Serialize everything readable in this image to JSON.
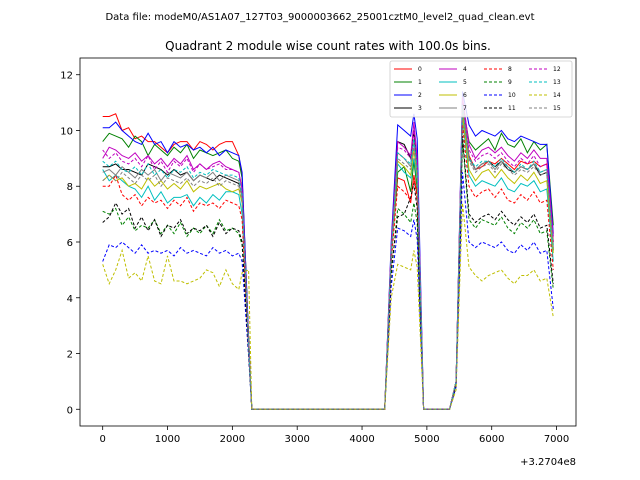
{
  "figure": {
    "suptitle": "Data file: modeM0/AS1A07_127T03_9000003662_25001cztM0_level2_quad_clean.evt"
  },
  "chart_data": {
    "type": "line",
    "title": "Quadrant 2 module wise count rates with 100.0s bins.",
    "xlabel": "",
    "ylabel": "",
    "x_offset_label": "+3.2704e8",
    "xlim": [
      -350,
      7300
    ],
    "ylim": [
      -0.6,
      12.6
    ],
    "xticks": [
      0,
      1000,
      2000,
      3000,
      4000,
      5000,
      6000,
      7000
    ],
    "xtick_labels": [
      "0",
      "1000",
      "2000",
      "3000",
      "4000",
      "5000",
      "6000",
      "7000"
    ],
    "yticks": [
      0,
      2,
      4,
      6,
      8,
      10,
      12
    ],
    "ytick_labels": [
      "0",
      "2",
      "4",
      "6",
      "8",
      "10",
      "12"
    ],
    "grid": false,
    "legend": {
      "placement": "top-right",
      "columns": 4
    },
    "x": [
      0,
      100,
      200,
      300,
      400,
      500,
      600,
      700,
      800,
      900,
      1000,
      1100,
      1200,
      1300,
      1400,
      1500,
      1600,
      1700,
      1800,
      1900,
      2000,
      2100,
      2150,
      2250,
      2300,
      4350,
      4450,
      4550,
      4650,
      4750,
      4800,
      4850,
      4950,
      5350,
      5450,
      5550,
      5650,
      5750,
      5850,
      5950,
      6050,
      6150,
      6250,
      6350,
      6450,
      6550,
      6650,
      6750,
      6850,
      6950
    ],
    "series": [
      {
        "name": "0",
        "color": "#ff0000",
        "style": "solid",
        "values": [
          10.5,
          10.5,
          10.6,
          10.0,
          10.1,
          9.7,
          9.8,
          9.6,
          9.6,
          9.4,
          9.2,
          9.5,
          9.6,
          9.6,
          9.3,
          9.6,
          9.5,
          9.3,
          9.5,
          9.6,
          9.6,
          9.1,
          8.3,
          2.6,
          0,
          0,
          5.6,
          8.3,
          8.2,
          7.4,
          8.4,
          7.7,
          0,
          0,
          1.0,
          11.0,
          9.1,
          8.6,
          8.7,
          8.9,
          8.8,
          9.0,
          8.8,
          8.6,
          8.9,
          8.8,
          8.9,
          8.7,
          8.8,
          6.0
        ]
      },
      {
        "name": "1",
        "color": "#008000",
        "style": "solid",
        "values": [
          9.6,
          9.9,
          9.8,
          9.7,
          9.4,
          9.8,
          9.6,
          9.1,
          9.5,
          9.3,
          9.1,
          9.4,
          9.2,
          9.5,
          9.0,
          9.3,
          9.2,
          9.1,
          9.2,
          9.3,
          9.0,
          8.9,
          8.3,
          2.6,
          0,
          0,
          5.5,
          8.5,
          8.7,
          7.8,
          8.9,
          7.9,
          0,
          0,
          1.0,
          11.0,
          9.6,
          9.3,
          9.5,
          9.7,
          9.3,
          9.9,
          9.5,
          9.4,
          9.7,
          9.2,
          9.6,
          9.3,
          9.5,
          6.6
        ]
      },
      {
        "name": "2",
        "color": "#0000ff",
        "style": "solid",
        "values": [
          10.1,
          10.1,
          10.3,
          10.0,
          9.8,
          9.6,
          9.5,
          9.9,
          9.5,
          9.6,
          9.2,
          9.6,
          9.4,
          9.5,
          9.3,
          9.4,
          9.2,
          9.4,
          9.1,
          9.3,
          9.2,
          9.1,
          8.5,
          2.5,
          0,
          0,
          6.0,
          10.2,
          10.0,
          9.8,
          10.6,
          9.7,
          0,
          0,
          1.0,
          11.4,
          10.2,
          9.8,
          10.0,
          9.9,
          9.8,
          10.0,
          9.7,
          9.6,
          9.8,
          9.7,
          9.6,
          9.5,
          9.5,
          6.3
        ]
      },
      {
        "name": "3",
        "color": "#000000",
        "style": "solid",
        "values": [
          8.7,
          8.7,
          8.8,
          8.6,
          8.6,
          8.5,
          8.4,
          8.8,
          8.7,
          8.6,
          8.4,
          8.6,
          8.4,
          8.5,
          8.2,
          8.4,
          8.3,
          8.2,
          8.4,
          8.3,
          8.2,
          8.1,
          7.7,
          2.2,
          0,
          0,
          5.7,
          9.6,
          9.5,
          9.0,
          10.0,
          8.5,
          0,
          0,
          1.0,
          10.8,
          9.0,
          8.6,
          8.8,
          8.9,
          8.7,
          8.9,
          8.6,
          8.5,
          8.7,
          8.6,
          8.8,
          8.4,
          8.5,
          5.7
        ]
      },
      {
        "name": "4",
        "color": "#bf00bf",
        "style": "solid",
        "values": [
          9.0,
          9.4,
          9.3,
          9.1,
          9.0,
          9.2,
          8.9,
          9.1,
          8.8,
          9.0,
          8.7,
          9.0,
          8.8,
          9.1,
          8.6,
          8.8,
          8.6,
          8.8,
          8.9,
          8.7,
          8.6,
          8.5,
          7.9,
          2.4,
          0,
          0,
          5.8,
          9.6,
          9.4,
          9.1,
          10.3,
          9.0,
          0,
          0,
          1.0,
          11.2,
          9.5,
          9.0,
          9.3,
          9.4,
          9.2,
          9.4,
          9.1,
          8.9,
          9.2,
          9.0,
          9.3,
          9.0,
          9.0,
          6.2
        ]
      },
      {
        "name": "5",
        "color": "#00bfbf",
        "style": "solid",
        "values": [
          8.6,
          8.2,
          8.4,
          8.2,
          8.0,
          7.9,
          7.6,
          8.0,
          7.5,
          7.8,
          7.4,
          7.6,
          7.6,
          7.7,
          7.3,
          7.6,
          7.4,
          7.7,
          7.5,
          7.8,
          7.8,
          7.7,
          7.0,
          2.2,
          0,
          0,
          5.3,
          8.8,
          8.5,
          8.3,
          9.0,
          8.2,
          0,
          0,
          1.0,
          10.4,
          8.4,
          8.0,
          8.2,
          8.1,
          8.0,
          8.3,
          7.9,
          7.8,
          8.1,
          8.0,
          8.2,
          7.8,
          7.9,
          5.3
        ]
      },
      {
        "name": "6",
        "color": "#bfbf00",
        "style": "solid",
        "values": [
          8.2,
          8.4,
          8.2,
          8.3,
          8.0,
          8.1,
          7.9,
          8.3,
          8.0,
          8.2,
          7.9,
          8.1,
          7.9,
          8.2,
          7.8,
          8.0,
          7.9,
          8.0,
          8.1,
          7.9,
          7.8,
          7.9,
          7.4,
          2.3,
          0,
          0,
          5.4,
          8.9,
          8.7,
          8.4,
          9.3,
          8.3,
          0,
          0,
          1.0,
          10.6,
          8.6,
          8.2,
          8.5,
          8.6,
          8.3,
          8.6,
          8.3,
          8.1,
          8.4,
          8.2,
          8.5,
          8.1,
          8.2,
          5.6
        ]
      },
      {
        "name": "7",
        "color": "#808080",
        "style": "solid",
        "values": [
          8.5,
          8.6,
          8.4,
          8.7,
          8.5,
          8.3,
          8.6,
          8.4,
          8.6,
          8.2,
          8.5,
          8.4,
          8.3,
          8.5,
          8.2,
          8.4,
          8.3,
          8.5,
          8.2,
          8.4,
          8.3,
          8.2,
          7.6,
          2.3,
          0,
          0,
          5.6,
          9.2,
          9.0,
          8.7,
          9.6,
          8.6,
          0,
          0,
          1.0,
          10.9,
          9.0,
          8.6,
          8.8,
          8.9,
          8.6,
          8.9,
          8.7,
          8.5,
          8.7,
          8.6,
          8.8,
          8.5,
          8.6,
          5.9
        ]
      },
      {
        "name": "8",
        "color": "#ff0000",
        "style": "dashed",
        "values": [
          8.0,
          8.0,
          8.4,
          7.7,
          7.5,
          7.7,
          7.3,
          7.6,
          7.4,
          7.5,
          7.2,
          7.5,
          7.3,
          7.6,
          7.1,
          7.4,
          7.3,
          7.4,
          7.2,
          7.5,
          7.4,
          7.3,
          6.8,
          2.2,
          0,
          0,
          5.3,
          8.0,
          7.8,
          7.5,
          8.3,
          7.5,
          0,
          0,
          1.0,
          10.2,
          8.0,
          7.6,
          7.8,
          7.9,
          7.6,
          7.9,
          7.5,
          7.4,
          7.7,
          7.5,
          7.8,
          7.4,
          7.5,
          5.0
        ]
      },
      {
        "name": "9",
        "color": "#008000",
        "style": "dashed",
        "values": [
          7.1,
          7.0,
          7.2,
          6.6,
          6.9,
          6.4,
          6.6,
          6.5,
          6.8,
          6.3,
          6.6,
          6.3,
          6.7,
          6.2,
          6.5,
          6.3,
          6.6,
          6.3,
          6.8,
          6.4,
          6.5,
          6.3,
          5.9,
          2.0,
          0,
          0,
          4.8,
          7.2,
          7.0,
          6.7,
          7.4,
          6.7,
          0,
          0,
          0.9,
          9.7,
          6.8,
          6.5,
          6.8,
          6.7,
          6.6,
          6.9,
          6.5,
          6.3,
          6.7,
          6.5,
          6.8,
          6.3,
          6.4,
          4.3
        ]
      },
      {
        "name": "10",
        "color": "#0000ff",
        "style": "dashed",
        "values": [
          5.3,
          5.9,
          5.8,
          6.0,
          5.8,
          5.6,
          5.9,
          5.6,
          5.7,
          5.6,
          5.7,
          5.5,
          5.8,
          5.6,
          5.7,
          5.6,
          5.5,
          5.8,
          5.6,
          5.7,
          5.5,
          5.6,
          5.3,
          1.9,
          0,
          0,
          4.4,
          6.5,
          6.4,
          6.2,
          6.8,
          6.1,
          0,
          0,
          0.8,
          8.5,
          6.0,
          5.8,
          6.0,
          5.9,
          5.8,
          6.0,
          5.7,
          5.6,
          5.9,
          5.7,
          6.0,
          5.6,
          5.7,
          3.6
        ]
      },
      {
        "name": "11",
        "color": "#000000",
        "style": "dashed",
        "values": [
          6.7,
          6.9,
          7.4,
          7.0,
          7.2,
          6.5,
          6.9,
          6.4,
          6.8,
          6.2,
          6.6,
          6.5,
          6.8,
          6.3,
          6.5,
          6.4,
          6.6,
          6.2,
          6.7,
          6.3,
          6.5,
          6.4,
          6.0,
          2.1,
          0,
          0,
          5.0,
          6.9,
          7.0,
          7.6,
          8.1,
          7.2,
          0,
          0,
          0.9,
          9.8,
          7.0,
          6.7,
          6.9,
          7.0,
          6.8,
          7.1,
          6.8,
          6.6,
          6.9,
          6.7,
          7.0,
          6.5,
          6.6,
          4.5
        ]
      },
      {
        "name": "12",
        "color": "#bf00bf",
        "style": "dashed",
        "values": [
          9.3,
          9.0,
          9.2,
          8.9,
          8.8,
          9.0,
          8.7,
          9.1,
          8.6,
          8.9,
          8.5,
          8.9,
          8.7,
          9.0,
          8.5,
          8.8,
          8.6,
          8.7,
          8.8,
          8.6,
          8.6,
          8.5,
          7.9,
          2.4,
          0,
          0,
          5.8,
          9.4,
          9.3,
          9.0,
          10.0,
          8.9,
          0,
          0,
          1.0,
          11.1,
          9.3,
          8.9,
          9.1,
          9.2,
          9.0,
          9.2,
          8.9,
          8.7,
          9.0,
          8.8,
          9.1,
          8.7,
          8.8,
          6.0
        ]
      },
      {
        "name": "13",
        "color": "#00bfbf",
        "style": "dashed",
        "values": [
          8.9,
          8.7,
          8.9,
          8.6,
          8.5,
          8.7,
          8.4,
          8.8,
          8.4,
          8.6,
          8.3,
          8.6,
          8.5,
          8.7,
          8.3,
          8.5,
          8.4,
          8.6,
          8.5,
          8.4,
          8.4,
          8.3,
          7.7,
          2.3,
          0,
          0,
          5.6,
          9.2,
          9.0,
          8.8,
          9.7,
          8.6,
          0,
          0,
          1.0,
          10.9,
          9.0,
          8.7,
          8.9,
          8.9,
          8.7,
          9.0,
          8.7,
          8.5,
          8.8,
          8.6,
          8.9,
          8.5,
          8.6,
          5.8
        ]
      },
      {
        "name": "14",
        "color": "#bfbf00",
        "style": "dashed",
        "values": [
          5.2,
          4.5,
          5.0,
          5.7,
          4.7,
          4.9,
          4.6,
          5.5,
          4.6,
          4.5,
          5.5,
          4.6,
          4.6,
          4.5,
          4.6,
          4.7,
          5.0,
          4.9,
          4.4,
          5.0,
          4.5,
          4.3,
          4.9,
          5.0,
          0,
          0,
          4.0,
          5.2,
          5.1,
          5.0,
          5.7,
          5.1,
          0,
          0,
          0.7,
          7.4,
          5.1,
          4.8,
          4.6,
          4.8,
          4.9,
          5.0,
          4.7,
          4.5,
          4.8,
          4.8,
          5.0,
          4.6,
          4.7,
          3.3
        ]
      },
      {
        "name": "15",
        "color": "#808080",
        "style": "dashed",
        "values": [
          8.2,
          8.4,
          8.2,
          8.5,
          8.3,
          8.1,
          8.4,
          8.2,
          8.4,
          8.0,
          8.3,
          8.2,
          8.1,
          8.3,
          8.0,
          8.2,
          8.1,
          8.3,
          8.0,
          8.2,
          8.1,
          8.0,
          7.5,
          2.3,
          0,
          0,
          5.5,
          9.0,
          8.8,
          8.6,
          9.4,
          8.4,
          0,
          0,
          1.0,
          10.8,
          8.9,
          8.5,
          8.7,
          8.8,
          8.5,
          8.8,
          8.6,
          8.4,
          8.6,
          8.5,
          8.7,
          8.4,
          8.5,
          5.8
        ]
      }
    ]
  }
}
